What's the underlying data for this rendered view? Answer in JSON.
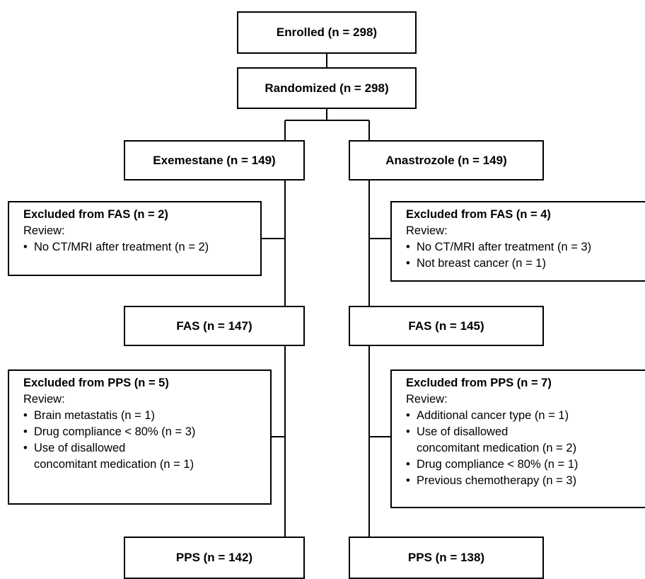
{
  "enrolled": "Enrolled (n = 298)",
  "randomized": "Randomized (n = 298)",
  "arms": {
    "left": {
      "name": "Exemestane (n = 149)",
      "excluded_fas": {
        "title": "Excluded from FAS (n = 2)",
        "review": "Review:",
        "items": [
          "No CT/MRI after treatment (n = 2)"
        ]
      },
      "fas": "FAS (n = 147)",
      "excluded_pps": {
        "title": "Excluded from PPS (n = 5)",
        "review": "Review:",
        "items": [
          [
            "Brain metastatis (n = 1)"
          ],
          [
            "Drug compliance < 80% (n = 3)"
          ],
          [
            "Use of disallowed",
            "concomitant medication (n = 1)"
          ]
        ]
      },
      "pps": "PPS (n = 142)"
    },
    "right": {
      "name": "Anastrozole (n = 149)",
      "excluded_fas": {
        "title": "Excluded from FAS (n = 4)",
        "review": "Review:",
        "items": [
          "No CT/MRI after treatment (n = 3)",
          "Not breast cancer (n = 1)"
        ]
      },
      "fas": "FAS (n = 145)",
      "excluded_pps": {
        "title": "Excluded from PPS (n = 7)",
        "review": "Review:",
        "items": [
          [
            "Additional cancer type (n = 1)"
          ],
          [
            "Use of disallowed",
            "concomitant medication (n = 2)"
          ],
          [
            "Drug compliance < 80% (n = 1)"
          ],
          [
            "Previous chemotherapy (n = 3)"
          ]
        ]
      },
      "pps": "PPS (n = 138)"
    }
  }
}
